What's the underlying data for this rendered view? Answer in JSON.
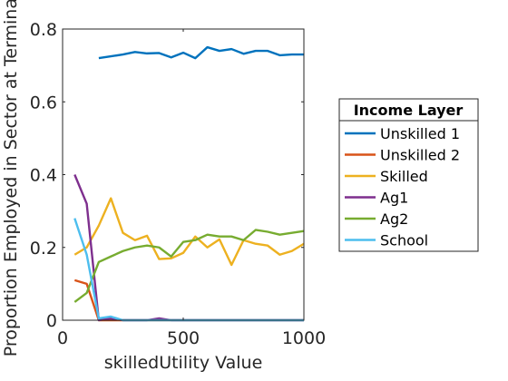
{
  "chart_data": {
    "type": "line",
    "title": "",
    "xlabel": "skilledUtility Value",
    "ylabel": "Proportion Employed in Sector at Terminal",
    "xlim": [
      0,
      1000
    ],
    "ylim": [
      0,
      0.8
    ],
    "xticks": [
      0,
      500,
      1000
    ],
    "xtick_labels": [
      "0",
      "500",
      "1000"
    ],
    "yticks": [
      0,
      0.2,
      0.4,
      0.6,
      0.8
    ],
    "ytick_labels": [
      "0",
      "0.2",
      "0.4",
      "0.6",
      "0.8"
    ],
    "grid": false,
    "legend": {
      "title": "Income Layer",
      "placement": "outside-right"
    },
    "x": [
      50,
      100,
      150,
      200,
      250,
      300,
      350,
      400,
      450,
      500,
      550,
      600,
      650,
      700,
      750,
      800,
      850,
      900,
      950,
      1000
    ],
    "series": [
      {
        "name": "Unskilled 1",
        "color": "#0072BD",
        "values": [
          null,
          null,
          0.72,
          0.725,
          0.73,
          0.737,
          0.733,
          0.734,
          0.722,
          0.735,
          0.72,
          0.75,
          0.74,
          0.745,
          0.732,
          0.74,
          0.74,
          0.728,
          0.73,
          0.73
        ]
      },
      {
        "name": "Unskilled 2",
        "color": "#D95319",
        "values": [
          0.11,
          0.1,
          0,
          0,
          0,
          0,
          0,
          0,
          0,
          0,
          0,
          0,
          0,
          0,
          0,
          0,
          0,
          0,
          0,
          0
        ]
      },
      {
        "name": "Skilled",
        "color": "#EDB120",
        "values": [
          0.18,
          0.2,
          0.26,
          0.335,
          0.24,
          0.22,
          0.232,
          0.168,
          0.17,
          0.185,
          0.23,
          0.2,
          0.222,
          0.152,
          0.22,
          0.21,
          0.205,
          0.18,
          0.19,
          0.21
        ]
      },
      {
        "name": "Ag1",
        "color": "#7E2F8E",
        "values": [
          0.4,
          0.32,
          0,
          0.005,
          0,
          0,
          0,
          0.005,
          0,
          0,
          0,
          0,
          0,
          0,
          0,
          0,
          0,
          0,
          0,
          0
        ]
      },
      {
        "name": "Ag2",
        "color": "#77AC30",
        "values": [
          0.05,
          0.075,
          0.16,
          0.175,
          0.19,
          0.2,
          0.205,
          0.2,
          0.175,
          0.215,
          0.22,
          0.235,
          0.23,
          0.23,
          0.22,
          0.248,
          0.243,
          0.235,
          0.24,
          0.245
        ]
      },
      {
        "name": "School",
        "color": "#4DBEEE",
        "values": [
          0.28,
          0.18,
          0.005,
          0.01,
          0,
          0,
          0,
          0,
          0,
          0,
          0,
          0,
          0,
          0,
          0,
          0,
          0,
          0,
          0,
          0
        ]
      }
    ]
  }
}
